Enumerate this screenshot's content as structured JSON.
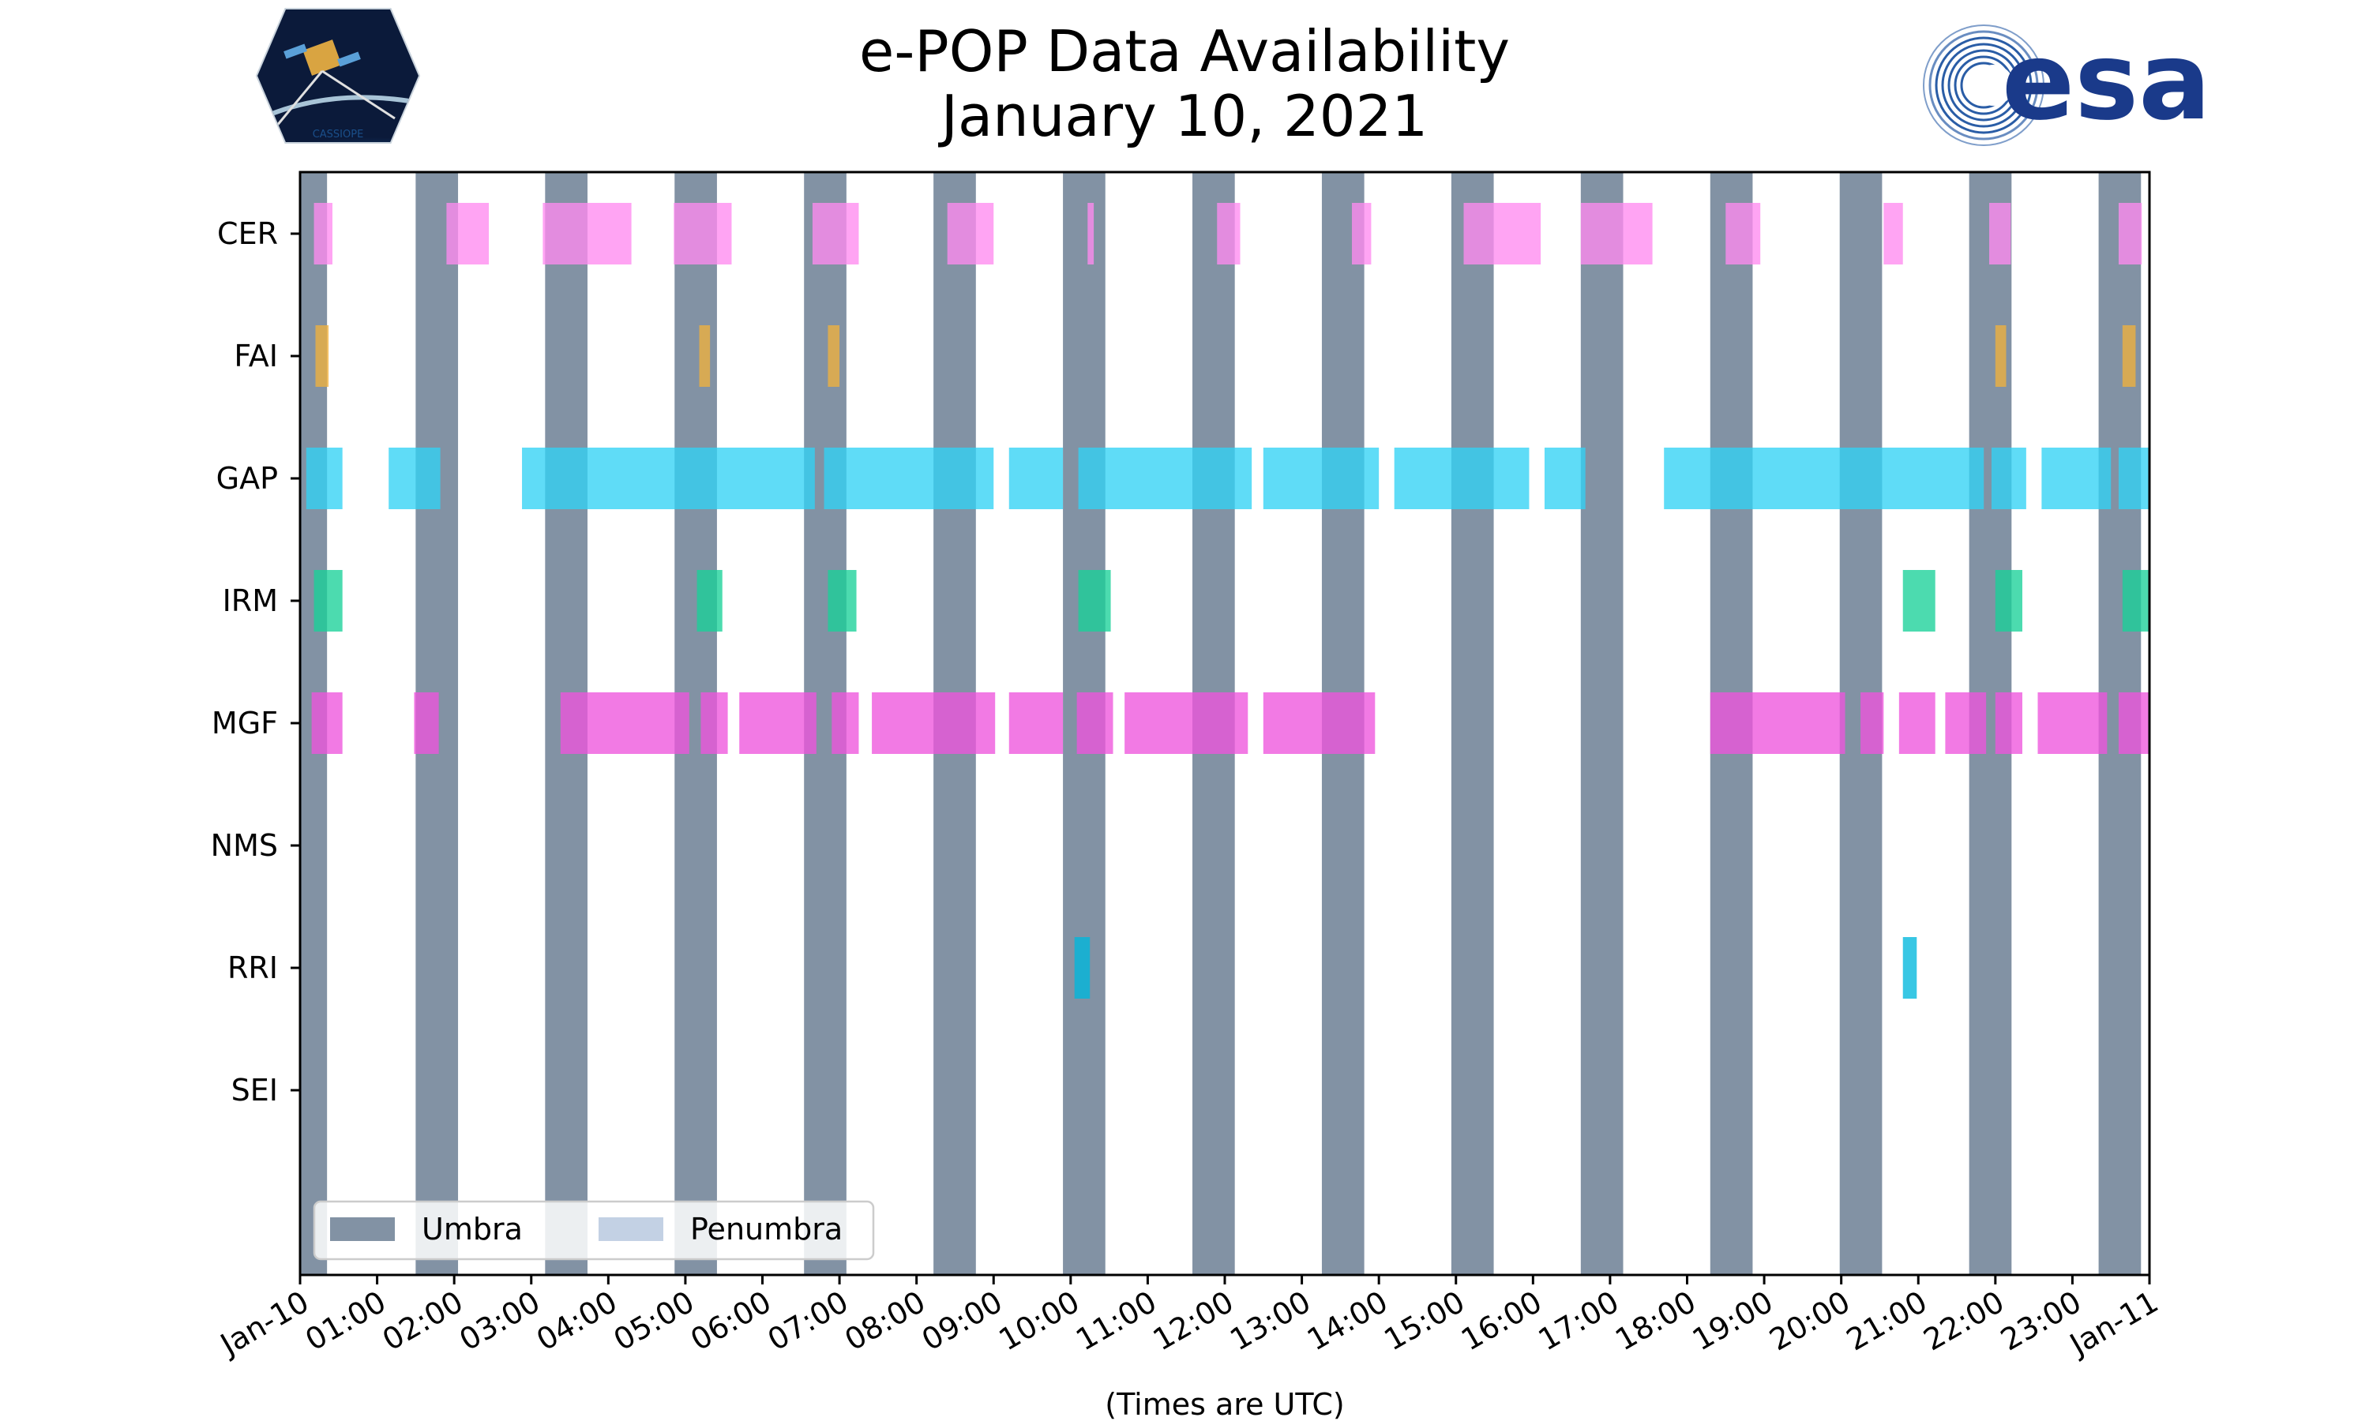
{
  "chart_data": {
    "type": "timeline",
    "title": [
      "e-POP Data Availability",
      "January 10, 2021"
    ],
    "xlabel": "(Times are UTC)",
    "xlim_hours": [
      0,
      24
    ],
    "x_tick_labels": [
      "Jan-10",
      "01:00",
      "02:00",
      "03:00",
      "04:00",
      "05:00",
      "06:00",
      "07:00",
      "08:00",
      "09:00",
      "10:00",
      "11:00",
      "12:00",
      "13:00",
      "14:00",
      "15:00",
      "16:00",
      "17:00",
      "18:00",
      "19:00",
      "20:00",
      "21:00",
      "22:00",
      "23:00",
      "Jan-11"
    ],
    "instruments": [
      "CER",
      "FAI",
      "GAP",
      "IRM",
      "MGF",
      "NMS",
      "RRI",
      "SEI"
    ],
    "colors": {
      "umbra": "#5f738b",
      "penumbra": "#c3d1e4",
      "CER": "#ff8bef",
      "FAI": "#f0b13e",
      "GAP": "#32d2f5",
      "IRM": "#19d198",
      "MGF": "#ee55dd",
      "RRI": "#00b7dc"
    },
    "legend": {
      "location": "lower-left",
      "entries": [
        "Umbra",
        "Penumbra"
      ]
    },
    "umbra_intervals": [
      [
        0.0,
        0.35
      ],
      [
        1.5,
        2.05
      ],
      [
        3.18,
        3.73
      ],
      [
        4.86,
        5.41
      ],
      [
        6.54,
        7.09
      ],
      [
        8.22,
        8.77
      ],
      [
        9.9,
        10.45
      ],
      [
        11.58,
        12.13
      ],
      [
        13.26,
        13.81
      ],
      [
        14.94,
        15.49
      ],
      [
        16.62,
        17.17
      ],
      [
        18.3,
        18.85
      ],
      [
        19.98,
        20.53
      ],
      [
        21.66,
        22.21
      ],
      [
        23.34,
        23.89
      ]
    ],
    "series": [
      {
        "name": "CER",
        "intervals": [
          [
            0.18,
            0.42
          ],
          [
            1.9,
            2.45
          ],
          [
            3.15,
            4.3
          ],
          [
            4.85,
            5.6
          ],
          [
            6.65,
            7.25
          ],
          [
            8.4,
            9.0
          ],
          [
            10.22,
            10.3
          ],
          [
            11.9,
            12.2
          ],
          [
            13.65,
            13.9
          ],
          [
            15.1,
            16.1
          ],
          [
            16.62,
            17.55
          ],
          [
            18.5,
            18.95
          ],
          [
            20.55,
            20.8
          ],
          [
            21.92,
            22.2
          ],
          [
            23.6,
            23.9
          ]
        ]
      },
      {
        "name": "FAI",
        "intervals": [
          [
            0.2,
            0.37
          ],
          [
            5.18,
            5.32
          ],
          [
            6.85,
            7.0
          ],
          [
            22.0,
            22.14
          ],
          [
            23.65,
            23.82
          ]
        ]
      },
      {
        "name": "GAP",
        "intervals": [
          [
            0.08,
            0.55
          ],
          [
            1.15,
            1.82
          ],
          [
            2.88,
            6.68
          ],
          [
            6.8,
            9.0
          ],
          [
            9.2,
            9.9
          ],
          [
            10.1,
            12.35
          ],
          [
            12.5,
            14.0
          ],
          [
            14.2,
            15.95
          ],
          [
            16.15,
            16.68
          ],
          [
            17.7,
            21.85
          ],
          [
            21.95,
            22.4
          ],
          [
            22.6,
            23.5
          ],
          [
            23.6,
            24.0
          ]
        ]
      },
      {
        "name": "IRM",
        "intervals": [
          [
            0.18,
            0.55
          ],
          [
            5.15,
            5.48
          ],
          [
            6.85,
            7.22
          ],
          [
            10.1,
            10.52
          ],
          [
            20.8,
            21.22
          ],
          [
            22.0,
            22.35
          ],
          [
            23.65,
            24.0
          ]
        ]
      },
      {
        "name": "MGF",
        "intervals": [
          [
            0.15,
            0.55
          ],
          [
            1.48,
            1.8
          ],
          [
            3.38,
            5.05
          ],
          [
            5.2,
            5.55
          ],
          [
            5.7,
            6.7
          ],
          [
            6.9,
            7.25
          ],
          [
            7.42,
            9.02
          ],
          [
            9.2,
            9.9
          ],
          [
            10.08,
            10.55
          ],
          [
            10.7,
            12.3
          ],
          [
            12.5,
            13.95
          ],
          [
            18.3,
            20.05
          ],
          [
            20.25,
            20.55
          ],
          [
            20.75,
            21.22
          ],
          [
            21.35,
            21.88
          ],
          [
            22.0,
            22.35
          ],
          [
            22.55,
            23.45
          ],
          [
            23.6,
            24.0
          ]
        ]
      },
      {
        "name": "NMS",
        "intervals": []
      },
      {
        "name": "RRI",
        "intervals": [
          [
            10.05,
            10.25
          ],
          [
            20.8,
            20.98
          ]
        ]
      },
      {
        "name": "SEI",
        "intervals": []
      }
    ]
  },
  "logos": {
    "left": {
      "name": "CASSIOPE mission patch",
      "text": "CASSIOPE"
    },
    "right": {
      "name": "ESA logo",
      "text": "esa"
    }
  }
}
